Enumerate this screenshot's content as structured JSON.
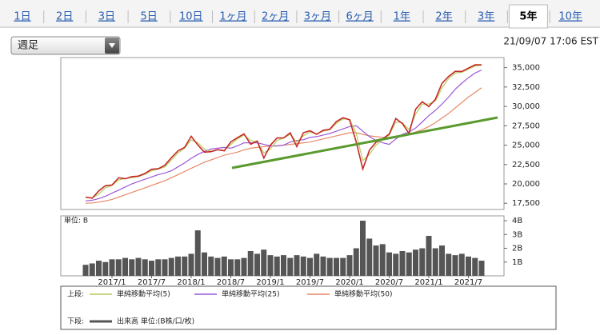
{
  "tabs": [
    "1日",
    "2日",
    "3日",
    "5日",
    "10日",
    "1ヶ月",
    "2ヶ月",
    "3ヶ月",
    "6ヶ月",
    "1年",
    "2年",
    "3年",
    "5年",
    "10年"
  ],
  "selected_tab": 12,
  "dropdown": "週足",
  "timestamp": "21/09/07 17:06 EST",
  "legend": {
    "upper_label": "上段:",
    "lower_label": "下段:"
  },
  "chart_data": [
    {
      "type": "line",
      "color": "#c62828",
      "values": [
        18300,
        18150,
        19100,
        19760,
        19860,
        20800,
        20660,
        20940,
        21000,
        21350,
        21890,
        21950,
        22400,
        23380,
        24270,
        24720,
        26150,
        25030,
        24100,
        24160,
        24420,
        24270,
        25420,
        25960,
        26460,
        25120,
        25540,
        23330,
        24990,
        25920,
        25930,
        26590,
        24820,
        26600,
        26860,
        26400,
        26920,
        27050,
        28050,
        28540,
        28260,
        25410,
        21920,
        24350,
        25380,
        25810,
        26430,
        28430,
        27780,
        26500,
        29640,
        30610,
        29980,
        30930,
        32980,
        33870,
        34530,
        34500,
        34940,
        35360,
        35370
      ],
      "series": [
        {
          "name": "単純移動平均(5)",
          "color": "#b5cc5a",
          "values": [
            18250,
            18200,
            18700,
            19500,
            19800,
            20500,
            20700,
            20800,
            20950,
            21250,
            21700,
            21900,
            22200,
            23100,
            24000,
            24600,
            25700,
            25300,
            24500,
            24200,
            24400,
            24350,
            25100,
            25800,
            26300,
            25600,
            25400,
            24000,
            24500,
            25600,
            25900,
            26400,
            25400,
            26200,
            26700,
            26450,
            26800,
            27000,
            27800,
            28400,
            28350,
            26500,
            23000,
            23800,
            25000,
            25700,
            26300,
            28000,
            27900,
            27000,
            29000,
            30300,
            30300,
            30700,
            32400,
            33600,
            34300,
            34400,
            34800,
            35200,
            35300
          ]
        },
        {
          "name": "単純移動平均(25)",
          "color": "#9b59d6",
          "values": [
            17800,
            17900,
            18100,
            18400,
            18800,
            19200,
            19600,
            20000,
            20300,
            20600,
            20900,
            21200,
            21400,
            21700,
            22200,
            22700,
            23300,
            23800,
            24200,
            24500,
            24600,
            24700,
            24600,
            24900,
            25300,
            25300,
            25300,
            25100,
            24900,
            24900,
            25000,
            25400,
            25600,
            25700,
            26000,
            26100,
            26300,
            26500,
            26800,
            27100,
            27400,
            27500,
            26800,
            26100,
            25600,
            25300,
            25100,
            25800,
            26400,
            26700,
            27200,
            28000,
            28800,
            29500,
            30300,
            31200,
            32200,
            33000,
            33700,
            34300,
            34700
          ]
        },
        {
          "name": "単純移動平均(50)",
          "color": "#e8896a",
          "values": [
            17500,
            17550,
            17650,
            17800,
            18000,
            18300,
            18600,
            18900,
            19200,
            19500,
            19800,
            20100,
            20400,
            20800,
            21200,
            21600,
            22000,
            22400,
            22800,
            23100,
            23400,
            23700,
            23900,
            24100,
            24400,
            24600,
            24700,
            24800,
            24900,
            24900,
            25000,
            25100,
            25200,
            25300,
            25400,
            25600,
            25800,
            26000,
            26200,
            26400,
            26600,
            26600,
            26400,
            26200,
            26100,
            26000,
            25900,
            26000,
            26200,
            26400,
            26700,
            27000,
            27400,
            27900,
            28500,
            29100,
            29800,
            30500,
            31200,
            31800,
            32400
          ]
        }
      ],
      "ylim": [
        16700,
        36300
      ],
      "yticks": [
        {
          "value": 17500,
          "label": "17,500"
        },
        {
          "value": 20000,
          "label": "20,000"
        },
        {
          "value": 22500,
          "label": "22,500"
        },
        {
          "value": 25000,
          "label": "25,000"
        },
        {
          "value": 27500,
          "label": "27,500"
        },
        {
          "value": 30000,
          "label": "30,000"
        },
        {
          "value": 32500,
          "label": "32,500"
        },
        {
          "value": 35000,
          "label": "35,000"
        }
      ]
    },
    {
      "type": "bar",
      "ylabel": "単位: B",
      "categories": [
        null,
        null,
        null,
        null,
        "2017/1",
        null,
        null,
        null,
        null,
        null,
        "2017/7",
        null,
        null,
        null,
        null,
        null,
        "2018/1",
        null,
        null,
        null,
        null,
        null,
        "2018/7",
        null,
        null,
        null,
        null,
        null,
        "2019/1",
        null,
        null,
        null,
        null,
        null,
        "2019/7",
        null,
        null,
        null,
        null,
        null,
        "2020/1",
        null,
        null,
        null,
        null,
        null,
        "2020/7",
        null,
        null,
        null,
        null,
        null,
        "2021/1",
        null,
        null,
        null,
        null,
        null,
        "2021/7",
        null,
        null
      ],
      "series": [
        {
          "name": "出来高 単位:(B株/口/枚)",
          "color": "#555555",
          "values": [
            0.8,
            0.9,
            1.1,
            1.0,
            1.2,
            1.2,
            1.3,
            1.2,
            1.3,
            1.2,
            1.1,
            1.2,
            1.2,
            1.3,
            1.4,
            1.4,
            1.6,
            3.3,
            1.7,
            1.4,
            1.3,
            1.4,
            1.2,
            1.2,
            1.3,
            1.8,
            1.6,
            1.9,
            1.5,
            1.4,
            1.5,
            1.3,
            1.5,
            1.4,
            1.3,
            1.6,
            1.4,
            1.3,
            1.3,
            1.3,
            1.5,
            2.0,
            4.0,
            2.7,
            2.2,
            2.3,
            1.7,
            1.6,
            1.8,
            1.7,
            1.9,
            2.0,
            2.9,
            2.0,
            2.2,
            1.6,
            1.5,
            1.6,
            1.4,
            1.3,
            1.1
          ]
        }
      ],
      "ylim": [
        0,
        4.35
      ],
      "yticks": [
        {
          "value": 1,
          "label": "1B"
        },
        {
          "value": 2,
          "label": "2B"
        },
        {
          "value": 3,
          "label": "3B"
        },
        {
          "value": 4,
          "label": "4B"
        }
      ]
    }
  ]
}
